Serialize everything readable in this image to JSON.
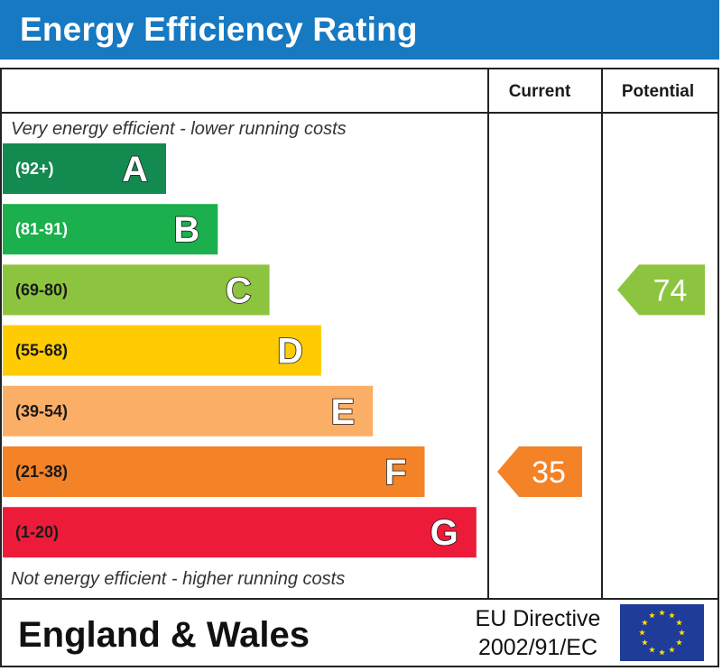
{
  "header": {
    "title": "Energy Efficiency Rating"
  },
  "columns": {
    "current": "Current",
    "potential": "Potential"
  },
  "notes": {
    "top": "Very energy efficient - lower running costs",
    "bottom": "Not energy efficient - higher running costs"
  },
  "footer": {
    "region": "England & Wales",
    "directive_line1": "EU Directive",
    "directive_line2": "2002/91/EC"
  },
  "chart_data": {
    "type": "bar",
    "title": "Energy Efficiency Rating",
    "bands": [
      {
        "letter": "A",
        "range": "(92+)",
        "min": 92,
        "max": 100,
        "color": "#138a4f",
        "range_color": "#ffffff"
      },
      {
        "letter": "B",
        "range": "(81-91)",
        "min": 81,
        "max": 91,
        "color": "#1bb04d",
        "range_color": "#ffffff"
      },
      {
        "letter": "C",
        "range": "(69-80)",
        "min": 69,
        "max": 80,
        "color": "#8cc43f",
        "range_color": "#1a1a1a"
      },
      {
        "letter": "D",
        "range": "(55-68)",
        "min": 55,
        "max": 68,
        "color": "#ffcc04",
        "range_color": "#1a1a1a"
      },
      {
        "letter": "E",
        "range": "(39-54)",
        "min": 39,
        "max": 54,
        "color": "#fbae66",
        "range_color": "#1a1a1a"
      },
      {
        "letter": "F",
        "range": "(21-38)",
        "min": 21,
        "max": 38,
        "color": "#f48226",
        "range_color": "#1a1a1a"
      },
      {
        "letter": "G",
        "range": "(1-20)",
        "min": 1,
        "max": 20,
        "color": "#ed1b3a",
        "range_color": "#1a1a1a"
      }
    ],
    "current": {
      "value": 35,
      "label": "35",
      "band": "F",
      "color": "#f48226"
    },
    "potential": {
      "value": 74,
      "label": "74",
      "band": "C",
      "color": "#8cc43f"
    }
  }
}
